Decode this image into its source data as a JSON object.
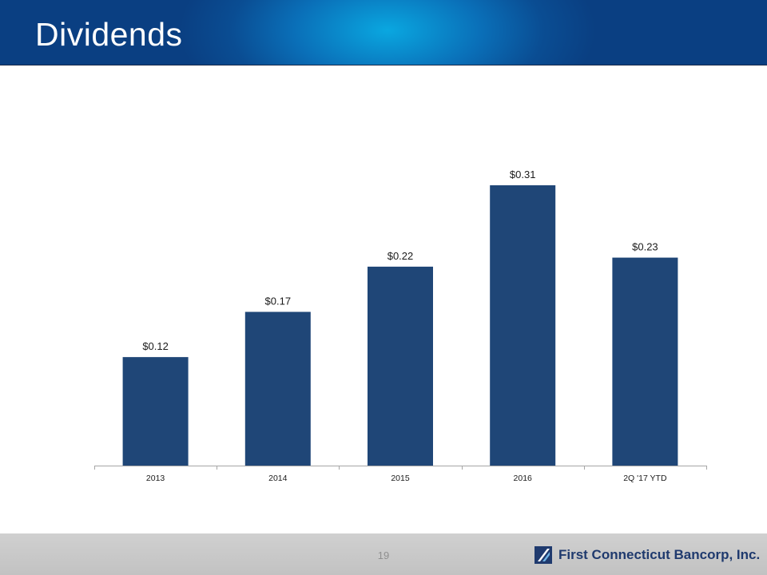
{
  "slide": {
    "title": "Dividends",
    "page_number": "19",
    "company": "First Connecticut Bancorp, Inc.",
    "logo_icon": "flag-logo-icon"
  },
  "colors": {
    "bar": "#1f4677",
    "axis": "#a6a6a6",
    "header": "#0a4d93",
    "footer": "#c8c8c8"
  },
  "chart_data": {
    "type": "bar",
    "categories": [
      "2013",
      "2014",
      "2015",
      "2016",
      "2Q '17 YTD"
    ],
    "values": [
      0.12,
      0.17,
      0.22,
      0.31,
      0.23
    ],
    "data_labels": [
      "$0.12",
      "$0.17",
      "$0.22",
      "$0.31",
      "$0.23"
    ],
    "title": "",
    "xlabel": "",
    "ylabel": "",
    "ylim": [
      0,
      0.31
    ],
    "grid": false,
    "legend": "none"
  }
}
